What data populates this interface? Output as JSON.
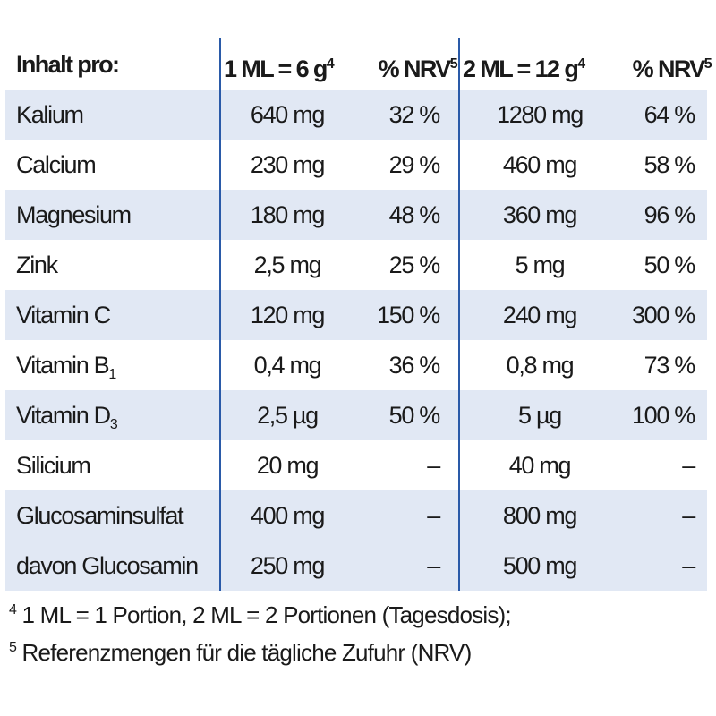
{
  "header": {
    "label": "Inhalt pro:",
    "col1": "1 ML = 6 g",
    "col1_sup": "4",
    "col2": "% NRV",
    "col2_sup": "5",
    "col3": "2 ML = 12 g",
    "col3_sup": "4",
    "col4": "% NRV",
    "col4_sup": "5"
  },
  "rows": [
    {
      "name": "Kalium",
      "sub": "",
      "v1": "640 mg",
      "p1": "32 %",
      "v2": "1280 mg",
      "p2": "64 %"
    },
    {
      "name": "Calcium",
      "sub": "",
      "v1": "230 mg",
      "p1": "29 %",
      "v2": "460 mg",
      "p2": "58 %"
    },
    {
      "name": "Magnesium",
      "sub": "",
      "v1": "180 mg",
      "p1": "48 %",
      "v2": "360 mg",
      "p2": "96 %"
    },
    {
      "name": "Zink",
      "sub": "",
      "v1": "2,5 mg",
      "p1": "25 %",
      "v2": "5 mg",
      "p2": "50 %"
    },
    {
      "name": "Vitamin C",
      "sub": "",
      "v1": "120 mg",
      "p1": "150 %",
      "v2": "240 mg",
      "p2": "300 %"
    },
    {
      "name": "Vitamin B",
      "sub": "1",
      "v1": "0,4 mg",
      "p1": "36 %",
      "v2": "0,8 mg",
      "p2": "73 %"
    },
    {
      "name": "Vitamin D",
      "sub": "3",
      "v1": "2,5 µg",
      "p1": "50 %",
      "v2": "5 µg",
      "p2": "100 %"
    },
    {
      "name": "Silicium",
      "sub": "",
      "v1": "20 mg",
      "p1": "–",
      "v2": "40 mg",
      "p2": "–"
    },
    {
      "name": "Glucosaminsulfat",
      "sub": "",
      "v1": "400 mg",
      "p1": "–",
      "v2": "800 mg",
      "p2": "–"
    },
    {
      "name": "davon Glucosamin",
      "sub": "",
      "v1": "250 mg",
      "p1": "–",
      "v2": "500 mg",
      "p2": "–"
    }
  ],
  "footnotes": [
    {
      "mark": "4",
      "text": " 1 ML = 1 Portion, 2 ML = 2 Portionen (Tagesdosis);"
    },
    {
      "mark": "5",
      "text": " Referenzmengen für die tägliche Zufuhr (NRV)"
    }
  ],
  "colors": {
    "accent": "#2a5aa8",
    "shade": "#e1e8f4"
  }
}
